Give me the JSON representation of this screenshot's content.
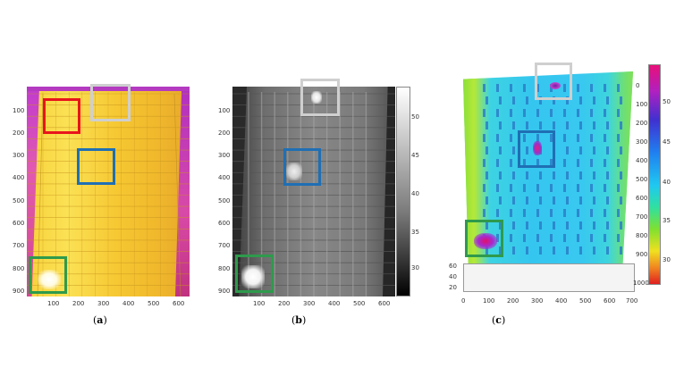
{
  "panels": [
    {
      "caption_prefix": "(",
      "caption_letter": "a",
      "caption_suffix": ")",
      "x_ticks": [
        "100",
        "200",
        "300",
        "400",
        "500",
        "600"
      ],
      "y_ticks": [
        "100",
        "200",
        "300",
        "400",
        "500",
        "600",
        "700",
        "800",
        "900"
      ]
    },
    {
      "caption_prefix": "(",
      "caption_letter": "b",
      "caption_suffix": ")",
      "x_ticks": [
        "100",
        "200",
        "300",
        "400",
        "500",
        "600"
      ],
      "y_ticks": [
        "100",
        "200",
        "300",
        "400",
        "500",
        "600",
        "700",
        "800",
        "900"
      ],
      "colorbar_ticks": [
        "50",
        "45",
        "40",
        "35",
        "30"
      ]
    },
    {
      "caption_prefix": "(",
      "caption_letter": "c",
      "caption_suffix": ")",
      "x_ticks": [
        "0",
        "100",
        "200",
        "300",
        "400",
        "500",
        "600",
        "700"
      ],
      "y_ticks": [
        "0",
        "100",
        "200",
        "300",
        "400",
        "500",
        "600",
        "700",
        "800",
        "900",
        "1000"
      ],
      "z_ticks": [
        "60",
        "40",
        "20"
      ],
      "colorbar_ticks": [
        "50",
        "45",
        "40",
        "35",
        "30"
      ]
    }
  ],
  "colors": {
    "red_box": "#e8141c",
    "gray_box": "#c8c8c8",
    "blue_box": "#1f6fb4",
    "green_box": "#2e9a4c"
  }
}
